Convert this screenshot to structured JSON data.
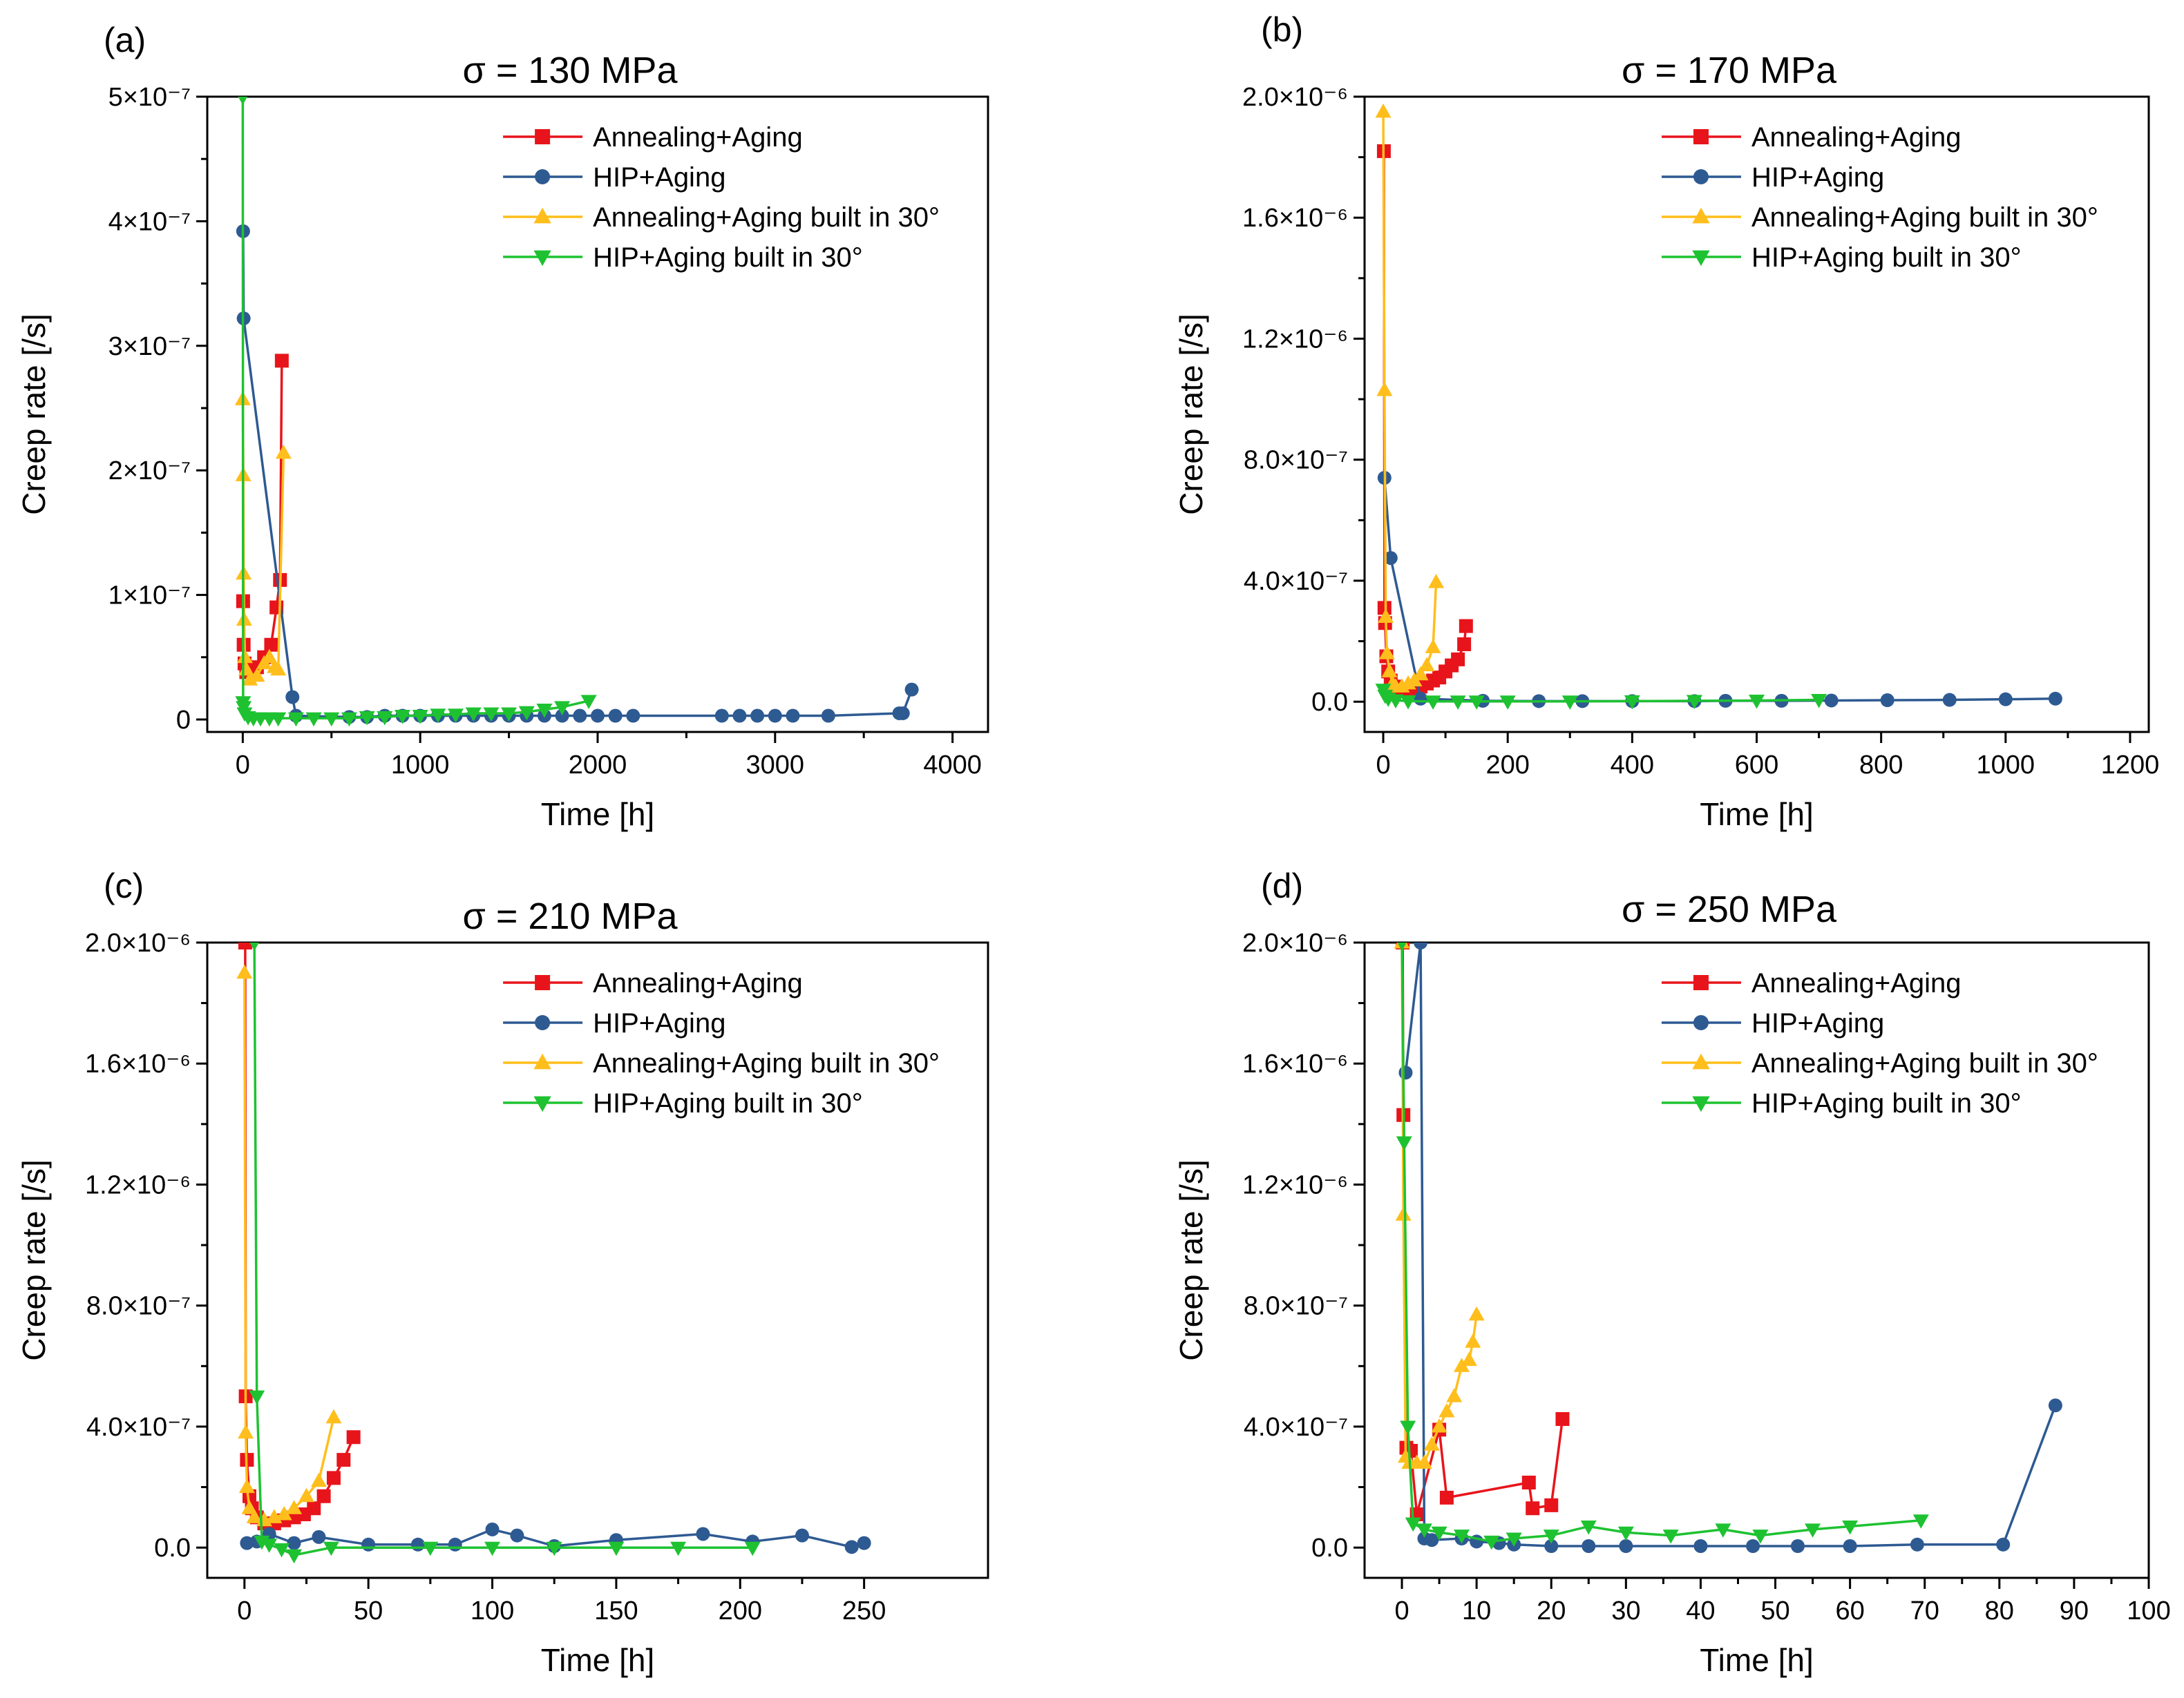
{
  "chart_data": [
    {
      "type": "line",
      "panel_label": "(a)",
      "title": "σ = 130 MPa",
      "xlabel": "Time [h]",
      "ylabel": "Creep rate [/s]",
      "xlim": [
        -200,
        4200
      ],
      "ylim": [
        -1e-08,
        5e-07
      ],
      "xticks": [
        0,
        1000,
        2000,
        3000,
        4000
      ],
      "xtick_labels": [
        "0",
        "1000",
        "2000",
        "3000",
        "4000"
      ],
      "yticks": [
        0,
        1e-07,
        2e-07,
        3e-07,
        4e-07,
        5e-07
      ],
      "ytick_labels": [
        "0",
        "1×10⁻⁷",
        "2×10⁻⁷",
        "3×10⁻⁷",
        "4×10⁻⁷",
        "5×10⁻⁷"
      ],
      "legend_position": "top-right",
      "series": [
        {
          "name": "Annealing+Aging",
          "color": "#e8141b",
          "marker": "square",
          "x": [
            2,
            5,
            10,
            20,
            40,
            80,
            120,
            160,
            190,
            210,
            220
          ],
          "y": [
            9.5e-08,
            6e-08,
            4.5e-08,
            3.8e-08,
            3.8e-08,
            4.2e-08,
            5e-08,
            6e-08,
            9e-08,
            1.12e-07,
            2.88e-07
          ]
        },
        {
          "name": "HIP+Aging",
          "color": "#2e5a92",
          "marker": "circle",
          "x": [
            2,
            5,
            280,
            300,
            600,
            700,
            800,
            900,
            1000,
            1100,
            1200,
            1300,
            1400,
            1500,
            1600,
            1700,
            1800,
            1900,
            2000,
            2100,
            2200,
            2700,
            2800,
            2900,
            3000,
            3100,
            3300,
            3700,
            3720,
            3770
          ],
          "y": [
            3.92e-07,
            3.22e-07,
            1.8e-08,
            3e-09,
            2e-09,
            2e-09,
            3e-09,
            3e-09,
            3e-09,
            3e-09,
            3e-09,
            3e-09,
            3e-09,
            3e-09,
            3e-09,
            3e-09,
            3e-09,
            3e-09,
            3e-09,
            3e-09,
            3e-09,
            3e-09,
            3e-09,
            3e-09,
            3e-09,
            3e-09,
            3e-09,
            5e-09,
            5e-09,
            2.4e-08
          ]
        },
        {
          "name": "Annealing+Aging built in 30°",
          "color": "#ffbe1c",
          "marker": "triangle-up",
          "x": [
            0,
            3,
            5,
            8,
            12,
            20,
            40,
            80,
            120,
            150,
            180,
            200,
            230
          ],
          "y": [
            2.57e-07,
            1.96e-07,
            1.17e-07,
            8e-08,
            5e-08,
            4e-08,
            3.2e-08,
            3.5e-08,
            4.5e-08,
            5e-08,
            4.2e-08,
            4e-08,
            2.14e-07
          ]
        },
        {
          "name": "HIP+Aging built in 30°",
          "color": "#1ec231",
          "marker": "triangle-down",
          "x": [
            0,
            2,
            5,
            10,
            30,
            60,
            100,
            150,
            200,
            300,
            400,
            500,
            600,
            700,
            800,
            900,
            1000,
            1100,
            1200,
            1300,
            1400,
            1500,
            1600,
            1700,
            1800,
            1950
          ],
          "y": [
            5e-07,
            1.4e-08,
            1e-08,
            5e-09,
            2e-09,
            1e-09,
            1e-09,
            1e-09,
            1e-09,
            1e-09,
            1e-09,
            1e-09,
            1e-09,
            2e-09,
            2e-09,
            3e-09,
            3e-09,
            4e-09,
            4e-09,
            5e-09,
            5e-09,
            5e-09,
            6e-09,
            8e-09,
            1e-08,
            1.5e-08
          ]
        }
      ]
    },
    {
      "type": "line",
      "panel_label": "(b)",
      "title": "σ = 170 MPa",
      "xlabel": "Time [h]",
      "ylabel": "Creep rate [/s]",
      "xlim": [
        -30,
        1230
      ],
      "ylim": [
        -1e-07,
        2e-06
      ],
      "xticks": [
        0,
        200,
        400,
        600,
        800,
        1000,
        1200
      ],
      "xtick_labels": [
        "0",
        "200",
        "400",
        "600",
        "800",
        "1000",
        "1200"
      ],
      "yticks": [
        0,
        4e-07,
        8e-07,
        1.2e-06,
        1.6e-06,
        2e-06
      ],
      "ytick_labels": [
        "0.0",
        "4.0×10⁻⁷",
        "8.0×10⁻⁷",
        "1.2×10⁻⁶",
        "1.6×10⁻⁶",
        "2.0×10⁻⁶"
      ],
      "legend_position": "top-right",
      "series": [
        {
          "name": "Annealing+Aging",
          "color": "#e8141b",
          "marker": "square",
          "x": [
            1,
            2,
            3,
            5,
            8,
            12,
            20,
            30,
            40,
            50,
            60,
            70,
            80,
            90,
            100,
            110,
            120,
            130,
            133
          ],
          "y": [
            1.82e-06,
            3.1e-07,
            2.6e-07,
            1.5e-07,
            1e-07,
            7e-08,
            5e-08,
            4e-08,
            4e-08,
            4.5e-08,
            5e-08,
            6e-08,
            7e-08,
            8e-08,
            1e-07,
            1.2e-07,
            1.4e-07,
            1.9e-07,
            2.5e-07
          ]
        },
        {
          "name": "HIP+Aging",
          "color": "#2e5a92",
          "marker": "circle",
          "x": [
            2,
            12,
            60,
            160,
            250,
            320,
            400,
            500,
            550,
            640,
            720,
            810,
            910,
            1000,
            1080
          ],
          "y": [
            7.4e-07,
            4.75e-07,
            1e-08,
            3e-09,
            2e-09,
            2e-09,
            2e-09,
            2e-09,
            3e-09,
            3e-09,
            4e-09,
            5e-09,
            6e-09,
            8e-09,
            1e-08
          ]
        },
        {
          "name": "Annealing+Aging built in 30°",
          "color": "#ffbe1c",
          "marker": "triangle-up",
          "x": [
            0,
            2,
            4,
            6,
            10,
            15,
            20,
            30,
            40,
            50,
            60,
            70,
            80,
            85
          ],
          "y": [
            1.95e-06,
            1.03e-06,
            2.8e-07,
            1.6e-07,
            1e-07,
            6e-08,
            5e-08,
            5e-08,
            6e-08,
            7e-08,
            9e-08,
            1.2e-07,
            1.8e-07,
            3.95e-07
          ]
        },
        {
          "name": "HIP+Aging built in 30°",
          "color": "#1ec231",
          "marker": "triangle-down",
          "x": [
            0,
            3,
            8,
            20,
            40,
            80,
            120,
            150,
            200,
            300,
            400,
            500,
            600,
            700
          ],
          "y": [
            4e-08,
            2e-08,
            1e-08,
            5e-09,
            2e-09,
            1e-09,
            1e-09,
            1e-09,
            1e-09,
            1e-09,
            2e-09,
            3e-09,
            4e-09,
            6e-09
          ]
        }
      ]
    },
    {
      "type": "line",
      "panel_label": "(c)",
      "title": "σ = 210 MPa",
      "xlabel": "Time [h]",
      "ylabel": "Creep rate [/s]",
      "xlim": [
        -15,
        300
      ],
      "ylim": [
        -1e-07,
        2e-06
      ],
      "xticks": [
        0,
        50,
        100,
        150,
        200,
        250
      ],
      "xtick_labels": [
        "0",
        "50",
        "100",
        "150",
        "200",
        "250"
      ],
      "yticks": [
        0,
        4e-07,
        8e-07,
        1.2e-06,
        1.6e-06,
        2e-06
      ],
      "ytick_labels": [
        "0.0",
        "4.0×10⁻⁷",
        "8.0×10⁻⁷",
        "1.2×10⁻⁶",
        "1.6×10⁻⁶",
        "2.0×10⁻⁶"
      ],
      "legend_position": "top-right",
      "series": [
        {
          "name": "Annealing+Aging",
          "color": "#e8141b",
          "marker": "square",
          "x": [
            0.3,
            0.5,
            1,
            2,
            3,
            5,
            8,
            12,
            16,
            20,
            24,
            28,
            32,
            36,
            40,
            44
          ],
          "y": [
            2e-06,
            5e-07,
            2.9e-07,
            1.7e-07,
            1.3e-07,
            1e-07,
            8e-08,
            8e-08,
            9e-08,
            1e-07,
            1.1e-07,
            1.3e-07,
            1.7e-07,
            2.3e-07,
            2.9e-07,
            3.65e-07
          ]
        },
        {
          "name": "HIP+Aging",
          "color": "#2e5a92",
          "marker": "circle",
          "x": [
            1,
            5,
            10,
            20,
            30,
            50,
            70,
            85,
            100,
            110,
            125,
            150,
            185,
            205,
            225,
            245,
            250
          ],
          "y": [
            1.5e-08,
            2e-08,
            4.5e-08,
            1.5e-08,
            3.5e-08,
            1e-08,
            1e-08,
            1e-08,
            6e-08,
            4e-08,
            5e-09,
            2.5e-08,
            4.5e-08,
            2e-08,
            4e-08,
            2e-09,
            1.5e-08
          ]
        },
        {
          "name": "Annealing+Aging built in 30°",
          "color": "#ffbe1c",
          "marker": "triangle-up",
          "x": [
            0,
            0.5,
            1,
            2,
            4,
            8,
            12,
            16,
            20,
            25,
            30,
            36
          ],
          "y": [
            1.9e-06,
            3.8e-07,
            2e-07,
            1.3e-07,
            1e-07,
            9e-08,
            1e-07,
            1.1e-07,
            1.3e-07,
            1.7e-07,
            2.2e-07,
            4.3e-07
          ]
        },
        {
          "name": "HIP+Aging built in 30°",
          "color": "#1ec231",
          "marker": "triangle-down",
          "x": [
            4,
            5,
            7,
            10,
            15,
            20,
            35,
            75,
            100,
            125,
            150,
            175,
            205
          ],
          "y": [
            2e-06,
            5e-07,
            2e-08,
            1e-08,
            -5e-09,
            -2.5e-08,
            0,
            0,
            0,
            0,
            0,
            0,
            0
          ]
        }
      ]
    },
    {
      "type": "line",
      "panel_label": "(d)",
      "title": "σ = 250 MPa",
      "xlabel": "Time [h]",
      "ylabel": "Creep rate [/s]",
      "xlim": [
        -5,
        100
      ],
      "ylim": [
        -1e-07,
        2e-06
      ],
      "xticks": [
        0,
        10,
        20,
        30,
        40,
        50,
        60,
        70,
        80,
        90,
        100
      ],
      "xtick_labels": [
        "0",
        "10",
        "20",
        "30",
        "40",
        "50",
        "60",
        "70",
        "80",
        "90",
        "100"
      ],
      "yticks": [
        0,
        4e-07,
        8e-07,
        1.2e-06,
        1.6e-06,
        2e-06
      ],
      "ytick_labels": [
        "0.0",
        "4.0×10⁻⁷",
        "8.0×10⁻⁷",
        "1.2×10⁻⁶",
        "1.6×10⁻⁶",
        "2.0×10⁻⁶"
      ],
      "legend_position": "top-right",
      "series": [
        {
          "name": "Annealing+Aging",
          "color": "#e8141b",
          "marker": "square",
          "x": [
            0.1,
            0.2,
            0.6,
            1.2,
            2,
            5,
            6,
            17,
            17.5,
            20,
            21.5
          ],
          "y": [
            2e-06,
            1.43e-06,
            3.3e-07,
            3.2e-07,
            1.1e-07,
            3.9e-07,
            1.65e-07,
            2.15e-07,
            1.3e-07,
            1.4e-07,
            4.25e-07
          ]
        },
        {
          "name": "HIP+Aging",
          "color": "#2e5a92",
          "marker": "circle",
          "x": [
            0.5,
            2.5,
            3,
            4,
            8,
            10,
            13,
            15,
            20,
            25,
            30,
            40,
            47,
            53,
            60,
            69,
            80.5,
            87.5
          ],
          "y": [
            1.57e-06,
            2e-06,
            3e-08,
            2.5e-08,
            3e-08,
            2e-08,
            1.5e-08,
            1e-08,
            5e-09,
            5e-09,
            5e-09,
            5e-09,
            5e-09,
            5e-09,
            5e-09,
            1e-08,
            1e-08,
            4.7e-07
          ]
        },
        {
          "name": "Annealing+Aging built in 30°",
          "color": "#ffbe1c",
          "marker": "triangle-up",
          "x": [
            0,
            0.2,
            0.5,
            1,
            2,
            3,
            4,
            5,
            6,
            7,
            8,
            9,
            9.5,
            10
          ],
          "y": [
            2e-06,
            1.1e-06,
            3e-07,
            2.8e-07,
            2.8e-07,
            2.8e-07,
            3.4e-07,
            4e-07,
            4.5e-07,
            5e-07,
            6e-07,
            6.2e-07,
            6.8e-07,
            7.7e-07
          ]
        },
        {
          "name": "HIP+Aging built in 30°",
          "color": "#1ec231",
          "marker": "triangle-down",
          "x": [
            0,
            0.3,
            0.8,
            1.5,
            3,
            5,
            8,
            12,
            15,
            20,
            25,
            30,
            36,
            43,
            48,
            55,
            60,
            69.5
          ],
          "y": [
            2e-06,
            1.34e-06,
            4e-07,
            8e-08,
            6e-08,
            5e-08,
            4e-08,
            2e-08,
            3e-08,
            4e-08,
            7e-08,
            5e-08,
            4e-08,
            6e-08,
            4e-08,
            6e-08,
            7e-08,
            9e-08
          ]
        }
      ]
    }
  ]
}
